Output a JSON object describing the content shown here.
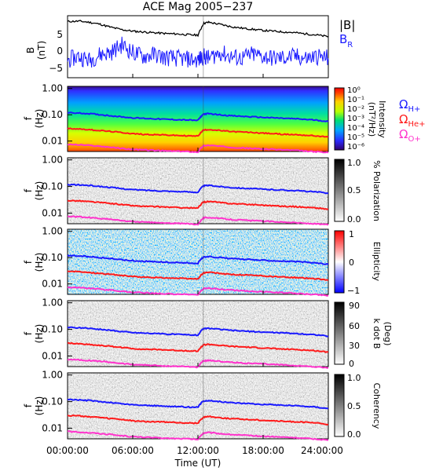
{
  "title": "ACE Mag 2005−237",
  "time_axis": {
    "label": "Time (UT)",
    "ticks": [
      "00:00:00",
      "06:00:00",
      "12:00:00",
      "18:00:00",
      "24:00:00"
    ],
    "range_hours": [
      0,
      24
    ]
  },
  "legend": {
    "top": [
      {
        "label": "|B|",
        "color": "#000000"
      },
      {
        "label": "B",
        "sub": "R",
        "color": "#1a1aff"
      }
    ],
    "gyro": [
      {
        "label": "Ω",
        "sub": "H+",
        "color": "#1a1aff"
      },
      {
        "label": "Ω",
        "sub": "He+",
        "color": "#ff1a1a"
      },
      {
        "label": "Ω",
        "sub": "O+",
        "color": "#ff33cc"
      }
    ]
  },
  "colors": {
    "hplus": "#1a1aff",
    "heplus": "#ff1a1a",
    "oplus": "#ff33cc",
    "mag": "#000000",
    "br": "#1a1aff"
  },
  "freq_ticks": [
    "1.00",
    "0.10",
    "0.01"
  ],
  "panels": [
    {
      "ylabel1": "B",
      "ylabel2": "(nT)",
      "yticks": [
        "5",
        "0",
        "−5"
      ]
    },
    {
      "ylabel1": "f",
      "ylabel2": "(Hz)",
      "cb_label": "Intensity",
      "cb_unit": "(nT²/Hz)",
      "cb_ticks": [
        "10⁰",
        "10⁻¹",
        "10⁻²",
        "10⁻³",
        "10⁻⁴",
        "10⁻⁵",
        "10⁻⁶"
      ]
    },
    {
      "ylabel1": "f",
      "ylabel2": "(Hz)",
      "cb_label": "% Polarization",
      "cb_ticks": [
        "1.0",
        "0.5",
        "0.0"
      ]
    },
    {
      "ylabel1": "f",
      "ylabel2": "(Hz)",
      "cb_label": "Ellipticity",
      "cb_ticks": [
        "1",
        "0",
        "−1"
      ]
    },
    {
      "ylabel1": "f",
      "ylabel2": "(Hz)",
      "cb_label": "k dot B",
      "cb_unit": "(Deg)",
      "cb_ticks": [
        "90",
        "60",
        "30",
        "0"
      ]
    },
    {
      "ylabel1": "f",
      "ylabel2": "(Hz)",
      "cb_label": "Coherency",
      "cb_ticks": [
        "1.0",
        "0.5",
        "0.0"
      ]
    }
  ],
  "chart_data": {
    "type": "line",
    "x_unit": "hours UT",
    "series": [
      {
        "name": "|B|",
        "x": [
          0,
          1,
          2,
          3,
          4,
          5,
          6,
          7,
          8,
          9,
          10,
          11,
          12,
          12.5,
          13,
          14,
          15,
          16,
          17,
          18,
          19,
          20,
          21,
          22,
          23,
          24
        ],
        "y": [
          7.5,
          7.6,
          7.3,
          6.8,
          6.0,
          5.4,
          5.0,
          4.8,
          4.6,
          4.4,
          4.3,
          4.1,
          4.0,
          7.0,
          7.3,
          6.8,
          6.2,
          5.8,
          5.5,
          5.2,
          5.0,
          4.8,
          4.6,
          4.3,
          4.0,
          3.6
        ]
      },
      {
        "name": "B_R",
        "x": [
          0,
          1,
          2,
          3,
          4,
          5,
          6,
          7,
          8,
          9,
          10,
          11,
          12,
          12.5,
          13,
          14,
          15,
          16,
          17,
          18,
          19,
          20,
          21,
          22,
          23,
          24
        ],
        "y": [
          -2.5,
          -1.5,
          -2.5,
          -1.0,
          -0.5,
          1.5,
          -0.5,
          -1.5,
          -1.0,
          -1.8,
          -2.0,
          -2.2,
          -2.5,
          -1.5,
          -2.0,
          -0.5,
          -1.5,
          -2.0,
          -1.0,
          -1.5,
          -2.0,
          -1.8,
          -1.5,
          -2.0,
          -1.5,
          -2.0
        ]
      },
      {
        "name": "Ω_H+",
        "x": [
          0,
          1,
          2,
          3,
          4,
          5,
          6,
          7,
          8,
          9,
          10,
          11,
          12,
          12.5,
          13,
          14,
          15,
          16,
          17,
          18,
          19,
          20,
          21,
          22,
          23,
          24
        ],
        "y": [
          0.12,
          0.115,
          0.11,
          0.1,
          0.092,
          0.083,
          0.076,
          0.073,
          0.07,
          0.067,
          0.065,
          0.063,
          0.061,
          0.105,
          0.11,
          0.1,
          0.092,
          0.087,
          0.083,
          0.079,
          0.076,
          0.073,
          0.07,
          0.066,
          0.062,
          0.055
        ]
      },
      {
        "name": "Ω_He+",
        "x": [
          0,
          1,
          2,
          3,
          4,
          5,
          6,
          7,
          8,
          9,
          10,
          11,
          12,
          12.5,
          13,
          14,
          15,
          16,
          17,
          18,
          19,
          20,
          21,
          22,
          23,
          24
        ],
        "y": [
          0.03,
          0.029,
          0.027,
          0.025,
          0.023,
          0.021,
          0.019,
          0.018,
          0.0175,
          0.017,
          0.0163,
          0.0158,
          0.0153,
          0.026,
          0.0275,
          0.025,
          0.023,
          0.022,
          0.021,
          0.02,
          0.019,
          0.018,
          0.0175,
          0.0165,
          0.0155,
          0.014
        ]
      },
      {
        "name": "Ω_O+",
        "x": [
          0,
          1,
          2,
          3,
          4,
          5,
          6,
          7,
          8,
          9,
          10,
          11,
          12,
          12.5,
          13,
          14,
          15,
          16,
          17,
          18,
          19,
          20,
          21,
          22,
          23,
          24
        ],
        "y": [
          0.0075,
          0.0072,
          0.0068,
          0.0063,
          0.0058,
          0.0052,
          0.0048,
          0.0046,
          0.0044,
          0.0042,
          0.0041,
          0.004,
          0.0038,
          0.0066,
          0.0069,
          0.0063,
          0.0058,
          0.0055,
          0.0052,
          0.005,
          0.0048,
          0.0046,
          0.0044,
          0.0041,
          0.0039,
          0.0036
        ]
      }
    ],
    "panel_b_ylim_nT": [
      -7,
      9
    ],
    "freq_ylim_hz": [
      0.004,
      1.2
    ],
    "freq_scale": "log"
  }
}
